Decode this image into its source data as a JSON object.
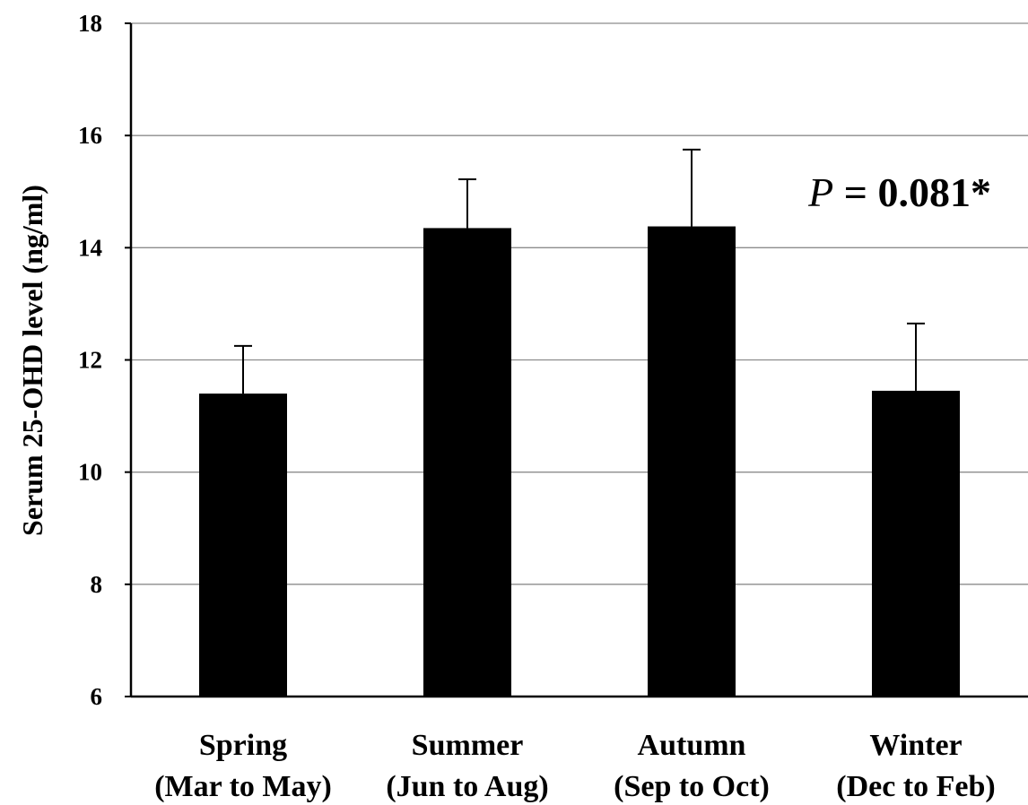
{
  "chart_data": {
    "type": "bar",
    "categories": [
      [
        "Spring",
        "(Mar to May)"
      ],
      [
        "Summer",
        "(Jun to Aug)"
      ],
      [
        "Autumn",
        "(Sep to Oct)"
      ],
      [
        "Winter",
        "(Dec to Feb)"
      ]
    ],
    "values": [
      11.4,
      14.35,
      14.38,
      11.45
    ],
    "error_upper": [
      12.25,
      15.22,
      15.75,
      12.65
    ],
    "ylabel": "Serum 25-OHD level (ng/ml)",
    "ylim": [
      6,
      18
    ],
    "yticks": [
      6,
      8,
      10,
      12,
      14,
      16,
      18
    ],
    "grid": true,
    "bar_color": "#000000",
    "annotation": {
      "p": "P",
      "rest": " = 0.081*"
    }
  }
}
